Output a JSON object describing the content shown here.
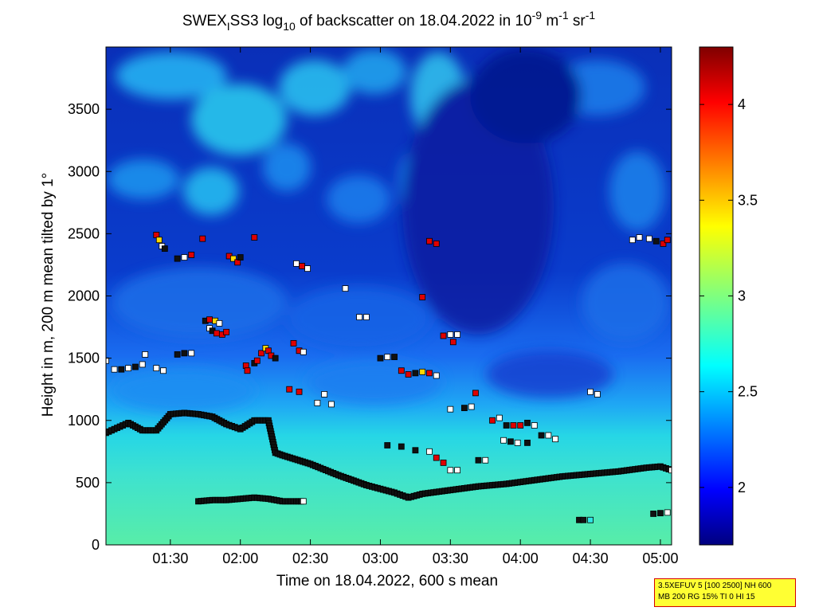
{
  "chart_data": {
    "type": "heatmap",
    "title": {
      "prefix": "SWEX",
      "prefix_sub": "I",
      "name": "SS3 log",
      "log_sub": "10",
      "middle": " of backscatter on 18.04.2022 in 10",
      "unit_sup1": "-9",
      "unit_m": " m",
      "unit_sup2": "-1",
      "unit_sr": " sr",
      "unit_sup3": "-1"
    },
    "xlabel": "Time on 18.04.2022, 600 s mean",
    "ylabel": "Height in m, 200 m mean tilted by 1°",
    "x_range_hours": [
      1.04,
      5.08
    ],
    "ylim": [
      0,
      4000
    ],
    "x_ticks": [
      {
        "t": 1.5,
        "label": "01:30"
      },
      {
        "t": 2.0,
        "label": "02:00"
      },
      {
        "t": 2.5,
        "label": "02:30"
      },
      {
        "t": 3.0,
        "label": "03:00"
      },
      {
        "t": 3.5,
        "label": "03:30"
      },
      {
        "t": 4.0,
        "label": "04:00"
      },
      {
        "t": 4.5,
        "label": "04:30"
      },
      {
        "t": 5.0,
        "label": "05:00"
      }
    ],
    "y_ticks": [
      {
        "v": 0,
        "label": "0"
      },
      {
        "v": 500,
        "label": "500"
      },
      {
        "v": 1000,
        "label": "1000"
      },
      {
        "v": 1500,
        "label": "1500"
      },
      {
        "v": 2000,
        "label": "2000"
      },
      {
        "v": 2500,
        "label": "2500"
      },
      {
        "v": 3000,
        "label": "3000"
      },
      {
        "v": 3500,
        "label": "3500"
      }
    ],
    "colorbar": {
      "range": [
        1.7,
        4.3
      ],
      "colormap": "jet",
      "ticks": [
        {
          "v": 2,
          "label": "2"
        },
        {
          "v": 2.5,
          "label": "2.5"
        },
        {
          "v": 3,
          "label": "3"
        },
        {
          "v": 3.5,
          "label": "3.5"
        },
        {
          "v": 4,
          "label": "4"
        }
      ]
    },
    "mixing_layer_height": [
      [
        1.04,
        900
      ],
      [
        1.1,
        930
      ],
      [
        1.2,
        980
      ],
      [
        1.3,
        920
      ],
      [
        1.4,
        920
      ],
      [
        1.5,
        1050
      ],
      [
        1.6,
        1060
      ],
      [
        1.7,
        1050
      ],
      [
        1.8,
        1030
      ],
      [
        1.9,
        970
      ],
      [
        2.0,
        930
      ],
      [
        2.1,
        1000
      ],
      [
        2.2,
        1000
      ],
      [
        2.25,
        740
      ],
      [
        2.3,
        720
      ],
      [
        2.5,
        650
      ],
      [
        2.7,
        560
      ],
      [
        2.9,
        480
      ],
      [
        3.1,
        420
      ],
      [
        3.2,
        380
      ],
      [
        3.3,
        410
      ],
      [
        3.5,
        440
      ],
      [
        3.7,
        470
      ],
      [
        3.9,
        490
      ],
      [
        4.1,
        520
      ],
      [
        4.3,
        550
      ],
      [
        4.5,
        570
      ],
      [
        4.7,
        590
      ],
      [
        4.9,
        620
      ],
      [
        5.0,
        630
      ],
      [
        5.08,
        600
      ]
    ],
    "residual_layer": [
      [
        1.7,
        350
      ],
      [
        1.8,
        360
      ],
      [
        1.9,
        360
      ],
      [
        2.0,
        370
      ],
      [
        2.1,
        380
      ],
      [
        2.2,
        370
      ],
      [
        2.3,
        350
      ],
      [
        2.4,
        350
      ],
      [
        2.45,
        350
      ]
    ],
    "layer_markers": [
      [
        1.04,
        1480,
        "w"
      ],
      [
        1.1,
        1410,
        "w"
      ],
      [
        1.15,
        1410,
        "k"
      ],
      [
        1.2,
        1420,
        "w"
      ],
      [
        1.25,
        1430,
        "k"
      ],
      [
        1.3,
        1450,
        "w"
      ],
      [
        1.32,
        1530,
        "w"
      ],
      [
        1.4,
        1420,
        "w"
      ],
      [
        1.45,
        1400,
        "w"
      ],
      [
        1.55,
        1530,
        "k"
      ],
      [
        1.6,
        1540,
        "k"
      ],
      [
        1.65,
        1540,
        "w"
      ],
      [
        1.4,
        2490,
        "r"
      ],
      [
        1.42,
        2450,
        "y"
      ],
      [
        1.44,
        2400,
        "w"
      ],
      [
        1.46,
        2380,
        "k"
      ],
      [
        1.55,
        2300,
        "k"
      ],
      [
        1.6,
        2310,
        "w"
      ],
      [
        1.65,
        2330,
        "r"
      ],
      [
        1.73,
        2460,
        "r"
      ],
      [
        1.75,
        1800,
        "k"
      ],
      [
        1.78,
        1810,
        "r"
      ],
      [
        1.82,
        1800,
        "y"
      ],
      [
        1.85,
        1780,
        "w"
      ],
      [
        1.78,
        1740,
        "w"
      ],
      [
        1.8,
        1720,
        "k"
      ],
      [
        1.83,
        1700,
        "r"
      ],
      [
        1.87,
        1690,
        "r"
      ],
      [
        1.9,
        1710,
        "r"
      ],
      [
        1.92,
        2320,
        "r"
      ],
      [
        1.95,
        2300,
        "y"
      ],
      [
        1.98,
        2270,
        "r"
      ],
      [
        2.0,
        2310,
        "k"
      ],
      [
        2.04,
        1440,
        "r"
      ],
      [
        2.05,
        1400,
        "r"
      ],
      [
        2.1,
        1460,
        "k"
      ],
      [
        2.12,
        1480,
        "r"
      ],
      [
        2.15,
        1540,
        "r"
      ],
      [
        2.18,
        1580,
        "y"
      ],
      [
        2.2,
        1560,
        "r"
      ],
      [
        2.22,
        1520,
        "r"
      ],
      [
        2.25,
        1500,
        "k"
      ],
      [
        2.1,
        2470,
        "r"
      ],
      [
        2.4,
        2260,
        "w"
      ],
      [
        2.44,
        2240,
        "r"
      ],
      [
        2.48,
        2220,
        "w"
      ],
      [
        2.38,
        1620,
        "r"
      ],
      [
        2.42,
        1560,
        "r"
      ],
      [
        2.45,
        1550,
        "w"
      ],
      [
        2.35,
        1250,
        "r"
      ],
      [
        2.42,
        1230,
        "r"
      ],
      [
        2.55,
        1140,
        "w"
      ],
      [
        2.6,
        1210,
        "w"
      ],
      [
        2.65,
        1130,
        "w"
      ],
      [
        2.75,
        2060,
        "w"
      ],
      [
        2.85,
        1830,
        "w"
      ],
      [
        2.9,
        1830,
        "w"
      ],
      [
        3.0,
        1500,
        "k"
      ],
      [
        3.05,
        1510,
        "w"
      ],
      [
        3.1,
        1510,
        "k"
      ],
      [
        3.15,
        1400,
        "r"
      ],
      [
        3.2,
        1370,
        "r"
      ],
      [
        3.25,
        1380,
        "k"
      ],
      [
        3.3,
        1390,
        "y"
      ],
      [
        3.35,
        1380,
        "r"
      ],
      [
        3.4,
        1360,
        "w"
      ],
      [
        3.3,
        1990,
        "r"
      ],
      [
        3.35,
        2440,
        "r"
      ],
      [
        3.4,
        2420,
        "r"
      ],
      [
        3.45,
        1680,
        "r"
      ],
      [
        3.5,
        1690,
        "w"
      ],
      [
        3.52,
        1630,
        "r"
      ],
      [
        3.55,
        1690,
        "w"
      ],
      [
        3.05,
        800,
        "k"
      ],
      [
        3.15,
        790,
        "k"
      ],
      [
        3.25,
        760,
        "k"
      ],
      [
        3.35,
        750,
        "w"
      ],
      [
        3.4,
        700,
        "r"
      ],
      [
        3.45,
        660,
        "r"
      ],
      [
        3.5,
        600,
        "w"
      ],
      [
        3.55,
        600,
        "w"
      ],
      [
        3.6,
        1100,
        "k"
      ],
      [
        3.65,
        1110,
        "w"
      ],
      [
        3.68,
        1220,
        "r"
      ],
      [
        3.5,
        1090,
        "w"
      ],
      [
        3.7,
        680,
        "k"
      ],
      [
        3.75,
        680,
        "w"
      ],
      [
        3.8,
        1000,
        "r"
      ],
      [
        3.85,
        1020,
        "w"
      ],
      [
        3.9,
        960,
        "k"
      ],
      [
        3.95,
        960,
        "r"
      ],
      [
        4.0,
        960,
        "r"
      ],
      [
        4.05,
        980,
        "k"
      ],
      [
        4.1,
        960,
        "w"
      ],
      [
        4.15,
        880,
        "k"
      ],
      [
        4.2,
        880,
        "w"
      ],
      [
        4.25,
        850,
        "w"
      ],
      [
        3.88,
        840,
        "w"
      ],
      [
        3.93,
        830,
        "k"
      ],
      [
        3.98,
        820,
        "w"
      ],
      [
        4.05,
        820,
        "k"
      ],
      [
        4.5,
        1230,
        "w"
      ],
      [
        4.55,
        1210,
        "w"
      ],
      [
        4.8,
        2450,
        "w"
      ],
      [
        4.85,
        2470,
        "w"
      ],
      [
        4.92,
        2460,
        "w"
      ],
      [
        4.97,
        2440,
        "k"
      ],
      [
        5.02,
        2420,
        "r"
      ],
      [
        5.05,
        2450,
        "r"
      ]
    ],
    "low_markers": [
      [
        4.42,
        200,
        "k"
      ],
      [
        4.45,
        200,
        "k"
      ],
      [
        4.5,
        200,
        "c"
      ],
      [
        4.95,
        250,
        "k"
      ],
      [
        5.0,
        255,
        "k"
      ],
      [
        5.05,
        260,
        "w"
      ]
    ]
  },
  "info_box": {
    "line1": "3.5XEFUV 5 [100 2500] NH 600",
    "line2": "MB 200 RG 15% TI 0 HI 15"
  }
}
